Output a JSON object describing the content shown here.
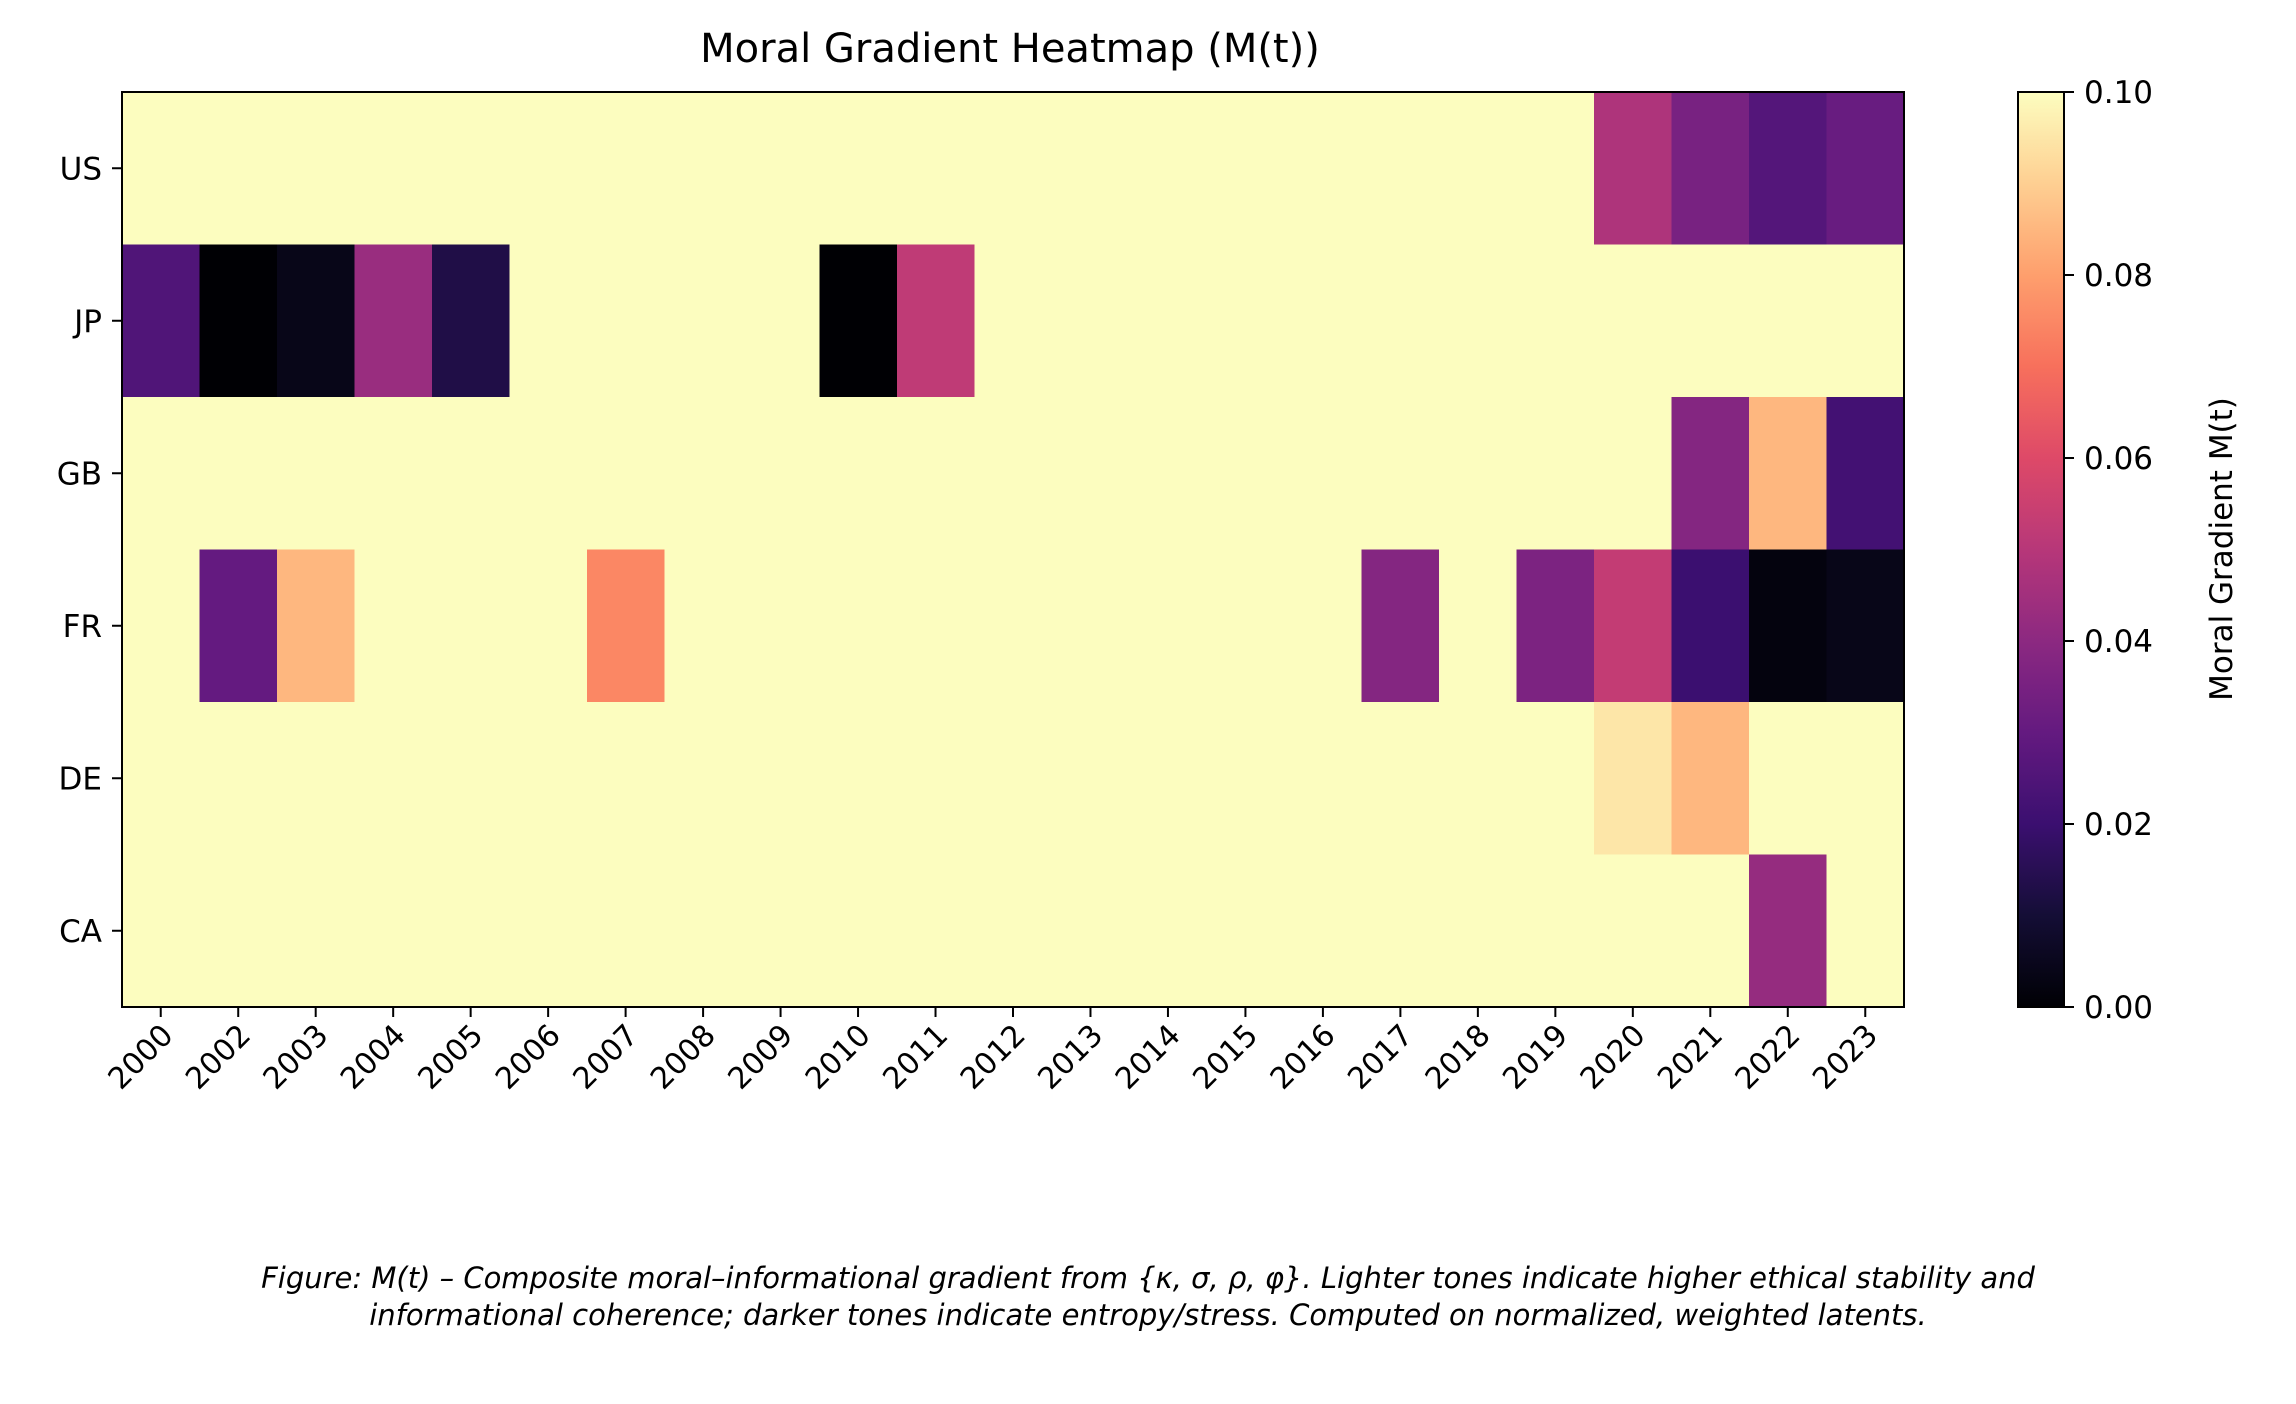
{
  "chart_data": {
    "type": "heatmap",
    "title": "Moral Gradient Heatmap (M(t))",
    "x_categories": [
      "2000",
      "2002",
      "2003",
      "2004",
      "2005",
      "2006",
      "2007",
      "2008",
      "2009",
      "2010",
      "2011",
      "2012",
      "2013",
      "2014",
      "2015",
      "2016",
      "2017",
      "2018",
      "2019",
      "2020",
      "2021",
      "2022",
      "2023"
    ],
    "y_categories": [
      "US",
      "JP",
      "GB",
      "FR",
      "DE",
      "CA"
    ],
    "values": [
      [
        0.1,
        0.1,
        0.1,
        0.1,
        0.1,
        0.1,
        0.1,
        0.1,
        0.1,
        0.1,
        0.1,
        0.1,
        0.1,
        0.1,
        0.1,
        0.1,
        0.1,
        0.1,
        0.1,
        0.048,
        0.035,
        0.026,
        0.031
      ],
      [
        0.025,
        0.0,
        0.004,
        0.043,
        0.013,
        0.1,
        0.1,
        0.1,
        0.1,
        0.0,
        0.052,
        0.1,
        0.1,
        0.1,
        0.1,
        0.1,
        0.1,
        0.1,
        0.1,
        0.1,
        0.1,
        0.1,
        0.1
      ],
      [
        0.1,
        0.1,
        0.1,
        0.1,
        0.1,
        0.1,
        0.1,
        0.1,
        0.1,
        0.1,
        0.1,
        0.1,
        0.1,
        0.1,
        0.1,
        0.1,
        0.1,
        0.1,
        0.1,
        0.1,
        0.038,
        0.085,
        0.022
      ],
      [
        0.1,
        0.03,
        0.085,
        0.1,
        0.1,
        0.1,
        0.075,
        0.1,
        0.1,
        0.1,
        0.1,
        0.1,
        0.1,
        0.1,
        0.1,
        0.1,
        0.038,
        0.1,
        0.036,
        0.053,
        0.02,
        0.002,
        0.004
      ],
      [
        0.1,
        0.1,
        0.1,
        0.1,
        0.1,
        0.1,
        0.1,
        0.1,
        0.1,
        0.1,
        0.1,
        0.1,
        0.1,
        0.1,
        0.1,
        0.1,
        0.1,
        0.1,
        0.1,
        0.095,
        0.085,
        0.1,
        0.1
      ],
      [
        0.1,
        0.1,
        0.1,
        0.1,
        0.1,
        0.1,
        0.1,
        0.1,
        0.1,
        0.1,
        0.1,
        0.1,
        0.1,
        0.1,
        0.1,
        0.1,
        0.1,
        0.1,
        0.1,
        0.1,
        0.1,
        0.042,
        0.1
      ]
    ],
    "colormap": "magma",
    "vmin": 0.0,
    "vmax": 0.1,
    "colorbar": {
      "label": "Moral Gradient M(t)",
      "ticks": [
        "0.00",
        "0.02",
        "0.04",
        "0.06",
        "0.08",
        "0.10"
      ]
    }
  },
  "caption": {
    "line1": "Figure: M(t) – Composite moral–informational gradient from {κ, σ, ρ, φ}. Lighter tones indicate higher ethical stability and",
    "line2": "informational coherence; darker tones indicate entropy/stress. Computed on normalized, weighted latents."
  }
}
